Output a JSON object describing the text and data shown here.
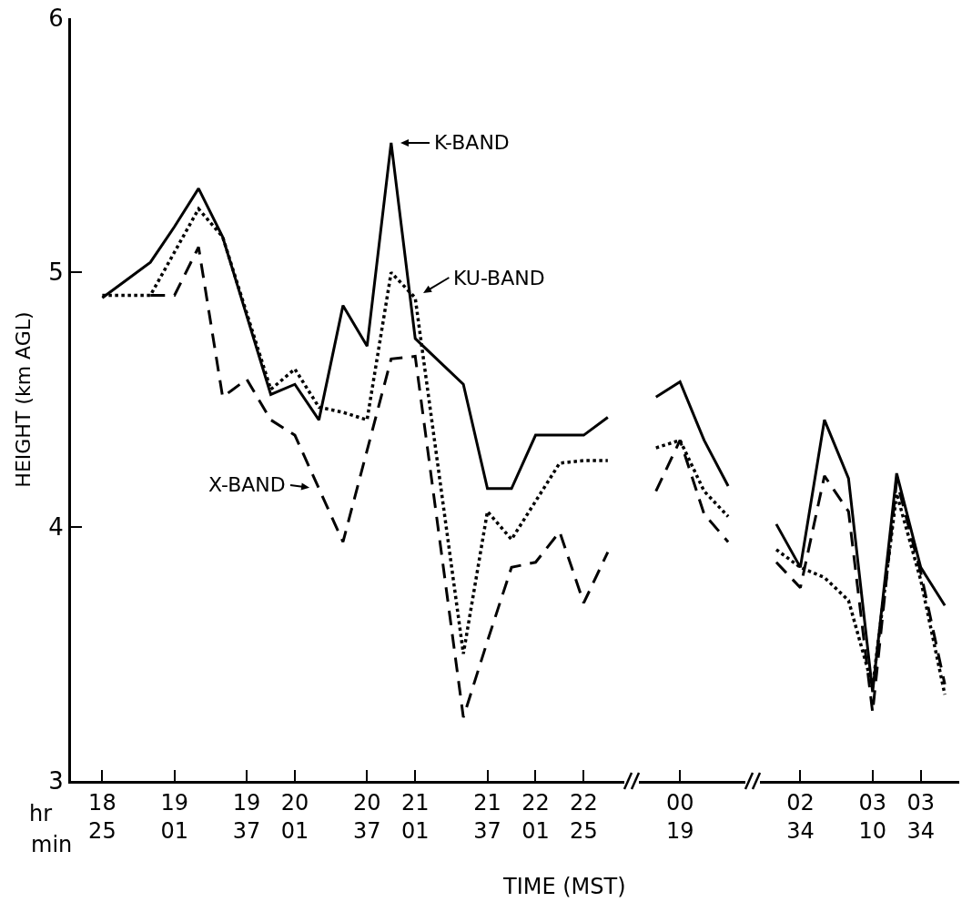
{
  "chart_data": {
    "type": "line",
    "xlabel": "TIME (MST)",
    "ylabel": "HEIGHT (km AGL)",
    "ylim": [
      3,
      6
    ],
    "yticks": [
      3,
      4,
      5,
      6
    ],
    "categories": [
      "18\n25",
      null,
      null,
      "19\n01",
      null,
      null,
      "19\n37",
      null,
      "20\n01",
      null,
      null,
      "20\n37",
      null,
      "21\n01",
      null,
      null,
      "21\n37",
      null,
      "22\n01",
      null,
      "22\n25",
      null,
      null,
      null,
      "00\n19",
      null,
      null,
      null,
      null,
      "02\n34",
      null,
      null,
      "03\n10",
      null,
      "03\n34",
      null
    ],
    "grid": false,
    "marker": "none",
    "annotations": [
      "hr",
      "min",
      "K-BAND",
      "KU-BAND",
      "X-BAND"
    ],
    "series": [
      {
        "color": "#000000",
        "line_style": "solid",
        "values": [
          4.9,
          4.97,
          5.04,
          5.18,
          5.33,
          5.14,
          4.83,
          4.52,
          4.56,
          4.42,
          4.87,
          4.71,
          5.51,
          4.74,
          4.65,
          4.56,
          4.15,
          4.15,
          4.36,
          4.36,
          4.36,
          4.43,
          null,
          4.51,
          4.57,
          4.34,
          4.16,
          null,
          4.01,
          3.84,
          4.42,
          4.19,
          3.35,
          4.21,
          3.84,
          3.69
        ]
      },
      {
        "color": "#000000",
        "line_style": "dotted",
        "values": [
          4.91,
          4.91,
          4.91,
          5.08,
          5.25,
          5.14,
          4.84,
          4.54,
          4.62,
          4.47,
          4.45,
          4.42,
          5.0,
          4.9,
          4.2,
          3.5,
          4.06,
          3.95,
          4.1,
          4.25,
          4.26,
          4.26,
          null,
          4.31,
          4.34,
          4.14,
          4.04,
          null,
          3.91,
          3.84,
          3.8,
          3.71,
          3.37,
          4.13,
          3.79,
          3.34
        ]
      },
      {
        "color": "#000000",
        "line_style": "dashed",
        "values": [
          null,
          null,
          4.91,
          4.91,
          5.1,
          4.51,
          4.58,
          4.42,
          4.36,
          4.15,
          3.94,
          4.3,
          4.66,
          4.67,
          3.96,
          3.25,
          3.55,
          3.84,
          3.86,
          3.98,
          3.7,
          3.9,
          null,
          4.14,
          4.34,
          4.05,
          3.94,
          null,
          3.86,
          3.76,
          4.2,
          4.06,
          3.27,
          4.18,
          3.82,
          3.38
        ]
      }
    ]
  }
}
